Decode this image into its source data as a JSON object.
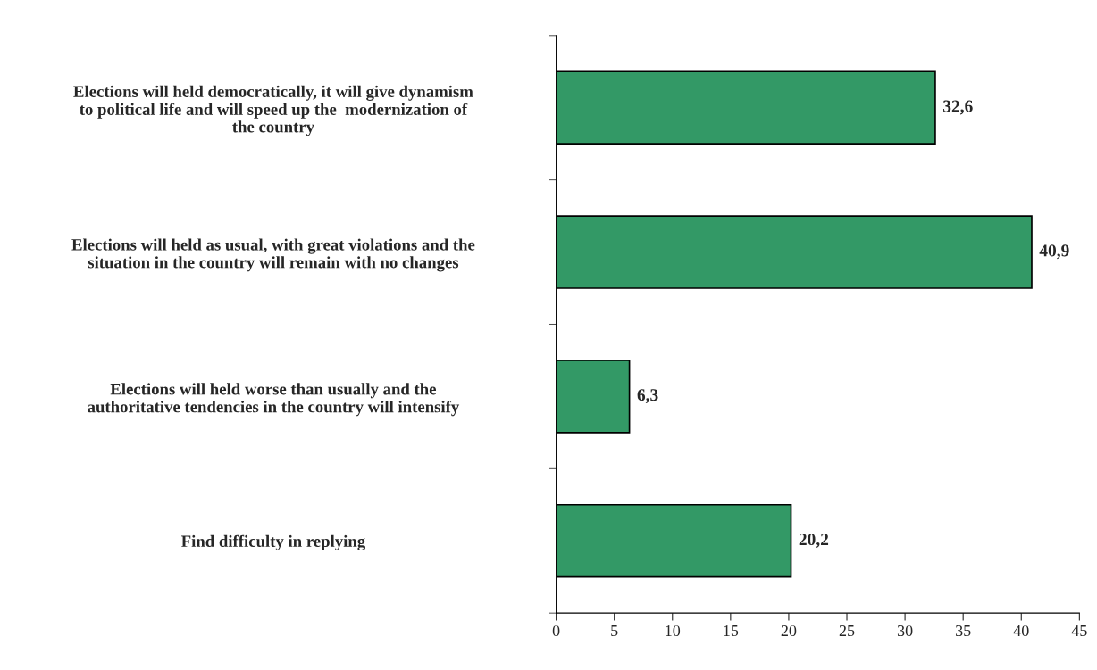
{
  "chart_data": {
    "type": "bar",
    "orientation": "horizontal",
    "categories": [
      "Elections will held democratically, it will give dynamism\nto political life and will speed up the  modernization of\nthe country",
      "Elections will held as usual, with great violations and the\nsituation in the country will remain with no changes",
      "Elections will held worse than usually and the\nauthoritative tendencies in the country will intensify",
      "Find difficulty in replying"
    ],
    "values": [
      32.6,
      40.9,
      6.3,
      20.2
    ],
    "value_labels": [
      "32,6",
      "40,9",
      "6,3",
      "20,2"
    ],
    "color": "#339966",
    "xlim": [
      0,
      45
    ],
    "xticks": [
      0,
      5,
      10,
      15,
      20,
      25,
      30,
      35,
      40,
      45
    ],
    "grid": false,
    "legend": false
  }
}
